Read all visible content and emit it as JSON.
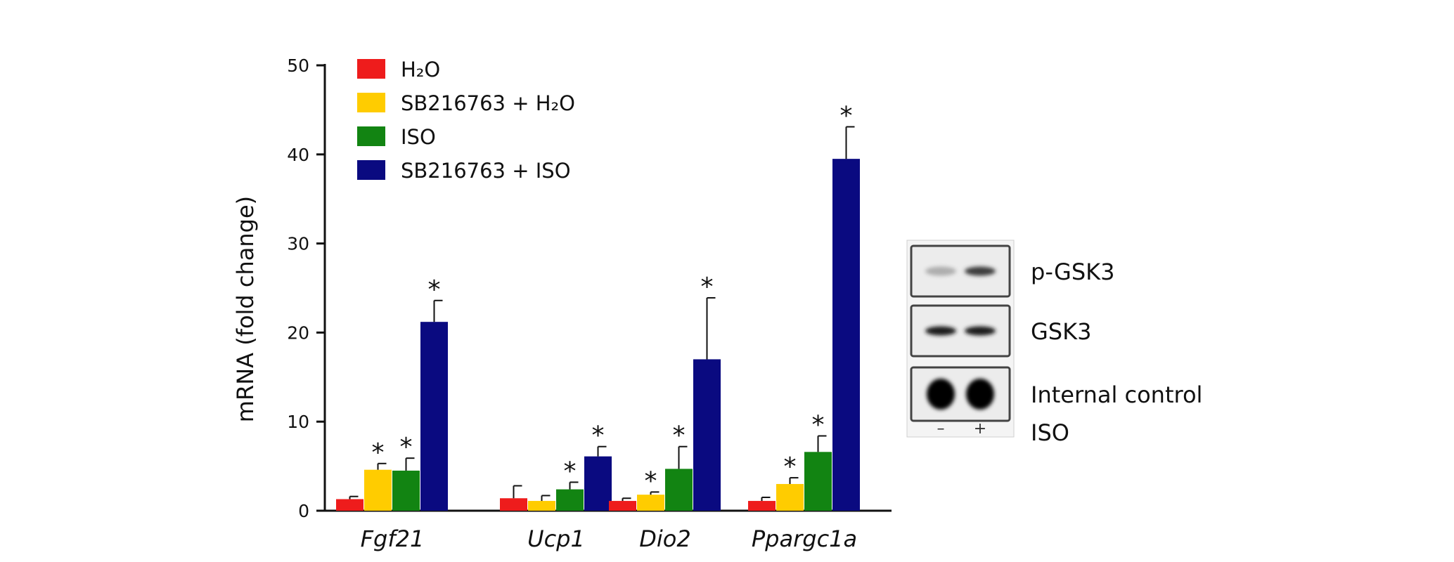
{
  "chart_data": {
    "type": "bar",
    "ylabel": "mRNA (fold change)",
    "ylim": [
      0,
      50
    ],
    "yticks": [
      0,
      10,
      20,
      30,
      40,
      50
    ],
    "categories": [
      "Fgf21",
      "Ucp1",
      "Dio2",
      "Ppargc1a"
    ],
    "legend_position": "top-left",
    "series": [
      {
        "name": "H₂O",
        "color": "#ee1c1c",
        "values": [
          1.3,
          1.4,
          1.1,
          1.1
        ],
        "errors": [
          0.3,
          1.4,
          0.3,
          0.4
        ],
        "significant": [
          false,
          false,
          false,
          false
        ]
      },
      {
        "name": "SB216763 + H₂O",
        "color": "#ffcc00",
        "values": [
          4.6,
          1.1,
          1.8,
          3.0
        ],
        "errors": [
          0.7,
          0.6,
          0.3,
          0.7
        ],
        "significant": [
          true,
          false,
          true,
          true
        ]
      },
      {
        "name": "ISO",
        "color": "#128412",
        "values": [
          4.5,
          2.4,
          4.7,
          6.6
        ],
        "errors": [
          1.4,
          0.8,
          2.5,
          1.8
        ],
        "significant": [
          true,
          true,
          true,
          true
        ]
      },
      {
        "name": "SB216763 + ISO",
        "color": "#0a0a80",
        "values": [
          21.2,
          6.1,
          17.0,
          39.5
        ],
        "errors": [
          2.4,
          1.1,
          6.9,
          3.6
        ],
        "significant": [
          true,
          true,
          true,
          true
        ]
      }
    ],
    "significance_marker": "*"
  },
  "blot": {
    "rows": [
      {
        "label": "p-GSK3",
        "band_intensity": [
          0.25,
          0.75
        ]
      },
      {
        "label": "GSK3",
        "band_intensity": [
          0.9,
          0.9
        ]
      },
      {
        "label": "Internal control",
        "band_intensity": [
          1.0,
          1.0
        ]
      }
    ],
    "condition_label": "ISO",
    "lane_signs": [
      "–",
      "+"
    ]
  }
}
